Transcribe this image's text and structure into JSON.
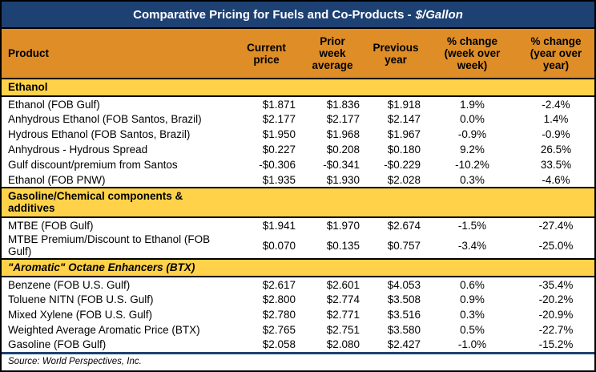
{
  "title_main": "Comparative Pricing for Fuels and Co-Products -",
  "title_unit": "$/Gallon",
  "source": "Source: World Perspectives, Inc.",
  "colors": {
    "title_bar_navy": "#1E4174",
    "header_row_orange": "#DE8D27",
    "section_band_gold": "#FFD24A",
    "border_black": "#000000",
    "title_text_white": "#FFFFFF"
  },
  "chart_data": {
    "type": "table",
    "title": "Comparative Pricing for Fuels and Co-Products - $/Gallon",
    "columns": [
      "Product",
      "Current\nprice",
      "Prior\nweek\naverage",
      "Previous\nyear",
      "% change\n(week over\nweek)",
      "% change\n(year over\nyear)"
    ],
    "sections": [
      {
        "label": "Ethanol",
        "rows": [
          {
            "product": "Ethanol (FOB Gulf)",
            "current": "$1.871",
            "prior": "$1.836",
            "previous": "$1.918",
            "wow": "1.9%",
            "yoy": "-2.4%"
          },
          {
            "product": "Anhydrous Ethanol (FOB Santos, Brazil)",
            "current": "$2.177",
            "prior": "$2.177",
            "previous": "$2.147",
            "wow": "0.0%",
            "yoy": "1.4%"
          },
          {
            "product": "Hydrous Ethanol (FOB Santos, Brazil)",
            "current": "$1.950",
            "prior": "$1.968",
            "previous": "$1.967",
            "wow": "-0.9%",
            "yoy": "-0.9%"
          },
          {
            "product": "Anhydrous - Hydrous Spread",
            "current": "$0.227",
            "prior": "$0.208",
            "previous": "$0.180",
            "wow": "9.2%",
            "yoy": "26.5%"
          },
          {
            "product": "Gulf discount/premium from Santos",
            "current": "-$0.306",
            "prior": "-$0.341",
            "previous": "-$0.229",
            "wow": "-10.2%",
            "yoy": "33.5%"
          },
          {
            "product": "Ethanol (FOB PNW)",
            "current": "$1.935",
            "prior": "$1.930",
            "previous": "$2.028",
            "wow": "0.3%",
            "yoy": "-4.6%"
          }
        ]
      },
      {
        "label": "Gasoline/Chemical components & additives",
        "rows": [
          {
            "product": "MTBE (FOB Gulf)",
            "current": "$1.941",
            "prior": "$1.970",
            "previous": "$2.674",
            "wow": "-1.5%",
            "yoy": "-27.4%"
          },
          {
            "product": "MTBE Premium/Discount to Ethanol (FOB Gulf)",
            "current": "$0.070",
            "prior": "$0.135",
            "previous": "$0.757",
            "wow": "-3.4%",
            "yoy": "-25.0%"
          }
        ]
      },
      {
        "label": "\"Aromatic\" Octane Enhancers (BTX)",
        "rows": [
          {
            "product": "Benzene (FOB U.S. Gulf)",
            "current": "$2.617",
            "prior": "$2.601",
            "previous": "$4.053",
            "wow": "0.6%",
            "yoy": "-35.4%"
          },
          {
            "product": "Toluene NITN (FOB U.S. Gulf)",
            "current": "$2.800",
            "prior": "$2.774",
            "previous": "$3.508",
            "wow": "0.9%",
            "yoy": "-20.2%"
          },
          {
            "product": "Mixed Xylene (FOB U.S. Gulf)",
            "current": "$2.780",
            "prior": "$2.771",
            "previous": "$3.516",
            "wow": "0.3%",
            "yoy": "-20.9%"
          },
          {
            "product": "Weighted Average Aromatic Price (BTX)",
            "current": "$2.765",
            "prior": "$2.751",
            "previous": "$3.580",
            "wow": "0.5%",
            "yoy": "-22.7%"
          },
          {
            "product": "Gasoline (FOB Gulf)",
            "current": "$2.058",
            "prior": "$2.080",
            "previous": "$2.427",
            "wow": "-1.0%",
            "yoy": "-15.2%"
          }
        ]
      }
    ]
  }
}
